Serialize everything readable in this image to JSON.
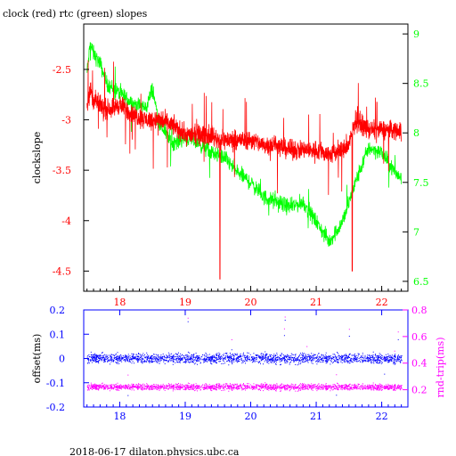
{
  "title": "clock (red) rtc (green) slopes",
  "footer": "2018-06-17  dilaton.physics.ubc.ca",
  "colors": {
    "clock": "#ff0000",
    "rtc": "#00ff00",
    "offset": "#0000ff",
    "roundtrip": "#ff00ff",
    "left_axis_top": "#ff0000",
    "right_axis_top": "#00ff00",
    "left_axis_bottom": "#0000ff",
    "right_axis_bottom": "#ff00ff",
    "frame": "#000000"
  },
  "chart_data": [
    {
      "type": "line",
      "ylabel": "clockslope",
      "y2label": "",
      "xlim": [
        17.45,
        22.4
      ],
      "ylim": [
        -4.7,
        -2.05
      ],
      "y2lim": [
        6.4,
        9.1
      ],
      "xticks": [
        18,
        19,
        20,
        21,
        22
      ],
      "yticks": [
        -4.5,
        -4,
        -3.5,
        -3,
        -2.5
      ],
      "y2ticks": [
        6.5,
        7,
        7.5,
        8,
        8.5,
        9
      ],
      "tick_labels": {
        "x": [
          "18",
          "19",
          "20",
          "21",
          "22"
        ],
        "y": [
          "-4.5",
          "-4",
          "-3.5",
          "-3",
          "-2.5"
        ],
        "y2": [
          "6.5",
          "7",
          "7.5",
          "8",
          "8.5",
          "9"
        ]
      },
      "series": [
        {
          "axis": "right",
          "x": [
            17.5,
            17.55,
            17.6,
            17.7,
            17.8,
            17.9,
            18.0,
            18.2,
            18.4,
            18.5,
            18.6,
            18.8,
            19.0,
            19.2,
            19.4,
            19.6,
            19.8,
            20.0,
            20.2,
            20.4,
            20.6,
            20.8,
            21.0,
            21.2,
            21.4,
            21.6,
            21.8,
            22.0,
            22.2,
            22.3
          ],
          "values": [
            8.6,
            8.9,
            8.8,
            8.7,
            8.5,
            8.45,
            8.4,
            8.3,
            8.25,
            8.45,
            8.1,
            7.9,
            7.95,
            7.9,
            7.8,
            7.75,
            7.6,
            7.5,
            7.35,
            7.3,
            7.25,
            7.3,
            7.1,
            6.9,
            7.1,
            7.5,
            7.85,
            7.8,
            7.6,
            7.55
          ]
        },
        {
          "axis": "left",
          "x": [
            17.5,
            17.55,
            17.6,
            17.8,
            18.0,
            18.2,
            18.4,
            18.6,
            18.8,
            19.0,
            19.2,
            19.4,
            19.5,
            19.6,
            19.8,
            20.0,
            20.2,
            20.4,
            20.6,
            20.8,
            21.0,
            21.2,
            21.4,
            21.5,
            21.6,
            21.8,
            22.0,
            22.2,
            22.3
          ],
          "values": [
            -2.85,
            -2.7,
            -2.8,
            -2.9,
            -2.85,
            -2.95,
            -3.0,
            -3.0,
            -3.05,
            -3.15,
            -3.15,
            -3.15,
            -3.2,
            -3.2,
            -3.2,
            -3.2,
            -3.25,
            -3.25,
            -3.3,
            -3.3,
            -3.3,
            -3.35,
            -3.3,
            -3.25,
            -3.0,
            -3.1,
            -3.1,
            -3.1,
            -3.1
          ]
        }
      ]
    },
    {
      "type": "scatter",
      "ylabel": "offset(ms)",
      "y2label": "rnd-trip(ms)",
      "xlim": [
        17.45,
        22.4
      ],
      "ylim": [
        -0.2,
        0.2
      ],
      "y2lim": [
        0.07,
        0.8
      ],
      "xticks": [
        18,
        19,
        20,
        21,
        22
      ],
      "yticks": [
        -0.2,
        -0.1,
        0,
        0.1,
        0.2
      ],
      "y2ticks": [
        0.2,
        0.4,
        0.6,
        0.8
      ],
      "tick_labels": {
        "x": [
          "18",
          "19",
          "20",
          "21",
          "22"
        ],
        "y": [
          "-0.2",
          "-0.1",
          "0",
          "0.1",
          "0.2"
        ],
        "y2": [
          "0.2",
          "0.4",
          "0.6",
          "0.8"
        ]
      },
      "series": [
        {
          "axis": "left",
          "x": [
            17.5,
            18.0,
            18.5,
            19.0,
            19.5,
            20.0,
            20.5,
            21.0,
            21.5,
            22.0,
            22.3
          ],
          "values": [
            0.0,
            0.0,
            0.0,
            0.0,
            0.0,
            0.0,
            0.0,
            0.0,
            0.0,
            0.0,
            0.0
          ]
        },
        {
          "axis": "right",
          "x": [
            17.5,
            18.0,
            18.5,
            19.0,
            19.5,
            20.0,
            20.5,
            21.0,
            21.5,
            22.0,
            22.3
          ],
          "values": [
            0.22,
            0.22,
            0.22,
            0.22,
            0.22,
            0.22,
            0.22,
            0.22,
            0.22,
            0.22,
            0.22
          ]
        }
      ]
    }
  ]
}
